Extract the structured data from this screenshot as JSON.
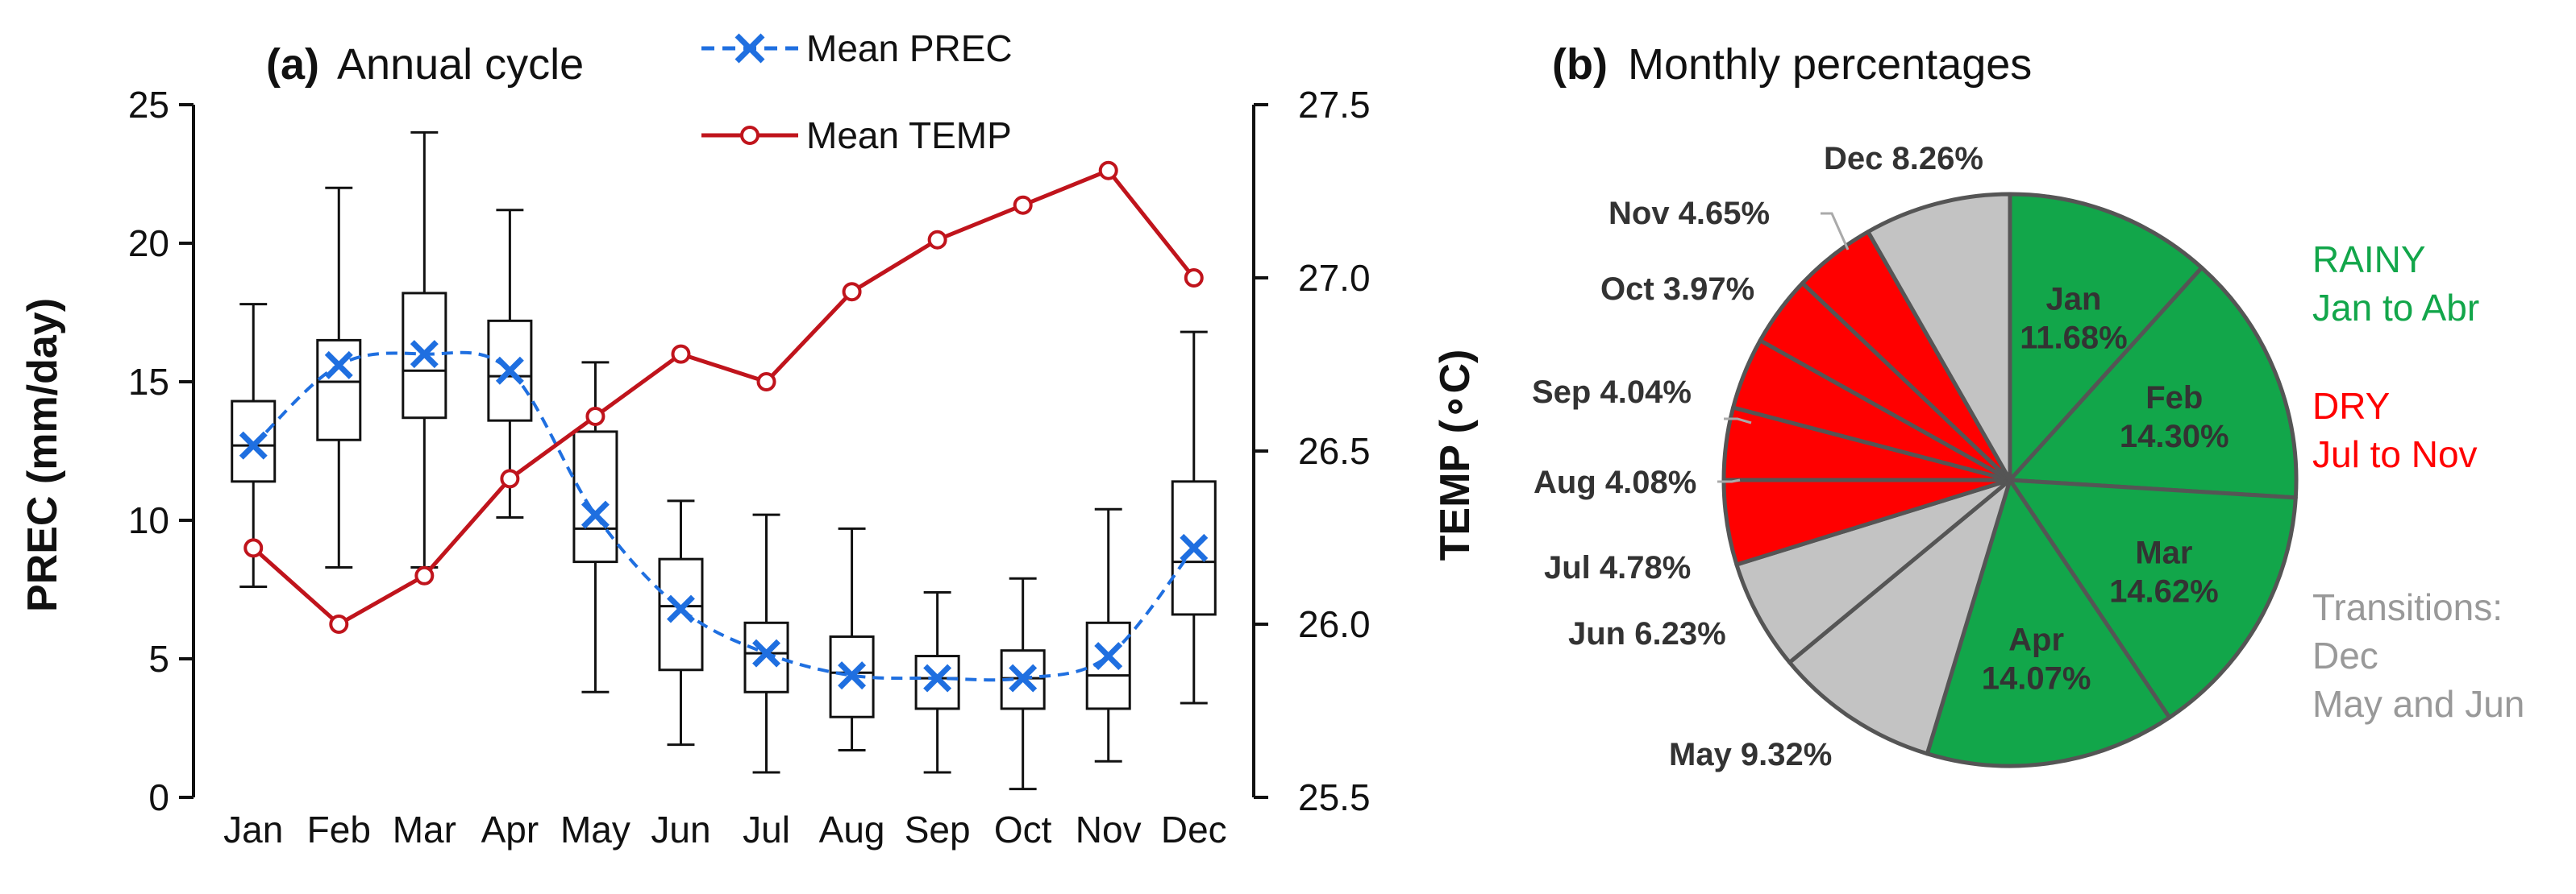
{
  "chart_data": [
    {
      "type": "box+line",
      "panel": "(a)",
      "title": "Annual cycle",
      "categories": [
        "Jan",
        "Feb",
        "Mar",
        "Apr",
        "May",
        "Jun",
        "Jul",
        "Aug",
        "Sep",
        "Oct",
        "Nov",
        "Dec"
      ],
      "ylabel": "PREC (mm/day)",
      "ylim": [
        0,
        25
      ],
      "yticks": [
        "0",
        "5",
        "10",
        "15",
        "20",
        "25"
      ],
      "y2label": "TEMP (∘C)",
      "y2lim": [
        25.5,
        27.5
      ],
      "y2ticks": [
        "25.5",
        "26.0",
        "26.5",
        "27.0",
        "27.5"
      ],
      "boxes": [
        {
          "min": 7.6,
          "q1": 11.4,
          "median": 12.7,
          "q3": 14.3,
          "max": 17.8
        },
        {
          "min": 8.3,
          "q1": 12.9,
          "median": 15.0,
          "q3": 16.5,
          "max": 22.0
        },
        {
          "min": 8.3,
          "q1": 13.7,
          "median": 15.4,
          "q3": 18.2,
          "max": 24.0
        },
        {
          "min": 10.1,
          "q1": 13.6,
          "median": 15.2,
          "q3": 17.2,
          "max": 21.2
        },
        {
          "min": 3.8,
          "q1": 8.5,
          "median": 9.7,
          "q3": 13.2,
          "max": 15.7
        },
        {
          "min": 1.9,
          "q1": 4.6,
          "median": 6.9,
          "q3": 8.6,
          "max": 10.7
        },
        {
          "min": 0.9,
          "q1": 3.8,
          "median": 5.2,
          "q3": 6.3,
          "max": 10.2
        },
        {
          "min": 1.7,
          "q1": 2.9,
          "median": 4.5,
          "q3": 5.8,
          "max": 9.7
        },
        {
          "min": 0.9,
          "q1": 3.2,
          "median": 4.3,
          "q3": 5.1,
          "max": 7.4
        },
        {
          "min": 0.3,
          "q1": 3.2,
          "median": 4.3,
          "q3": 5.3,
          "max": 7.9
        },
        {
          "min": 1.3,
          "q1": 3.2,
          "median": 4.4,
          "q3": 6.3,
          "max": 10.4
        },
        {
          "min": 3.4,
          "q1": 6.6,
          "median": 8.5,
          "q3": 11.4,
          "max": 16.8
        }
      ],
      "series": [
        {
          "name": "Mean PREC",
          "color": "#1f6fe0",
          "values": [
            12.7,
            15.6,
            16.0,
            15.4,
            10.2,
            6.8,
            5.2,
            4.4,
            4.3,
            4.3,
            5.1,
            9.0
          ]
        },
        {
          "name": "Mean TEMP",
          "color": "#c0141c",
          "values": [
            26.22,
            26.0,
            26.14,
            26.42,
            26.6,
            26.78,
            26.7,
            26.96,
            27.11,
            27.21,
            27.31,
            27.0
          ]
        }
      ]
    },
    {
      "type": "pie",
      "panel": "(b)",
      "title": "Monthly percentages",
      "slices": [
        {
          "label": "Jan",
          "pct": "11.68%",
          "value": 11.68,
          "color": "#12a64a",
          "outside": false
        },
        {
          "label": "Feb",
          "pct": "14.30%",
          "value": 14.3,
          "color": "#12a64a",
          "outside": false
        },
        {
          "label": "Mar",
          "pct": "14.62%",
          "value": 14.62,
          "color": "#12a64a",
          "outside": false
        },
        {
          "label": "Apr",
          "pct": "14.07%",
          "value": 14.07,
          "color": "#12a64a",
          "outside": false
        },
        {
          "label": "May",
          "pct": "9.32%",
          "value": 9.32,
          "color": "#c3c3c3",
          "outside": true
        },
        {
          "label": "Jun",
          "pct": "6.23%",
          "value": 6.23,
          "color": "#c3c3c3",
          "outside": true
        },
        {
          "label": "Jul",
          "pct": "4.78%",
          "value": 4.78,
          "color": "#ff0000",
          "outside": true
        },
        {
          "label": "Aug",
          "pct": "4.08%",
          "value": 4.08,
          "color": "#ff0000",
          "outside": true
        },
        {
          "label": "Sep",
          "pct": "4.04%",
          "value": 4.04,
          "color": "#ff0000",
          "outside": true
        },
        {
          "label": "Oct",
          "pct": "3.97%",
          "value": 3.97,
          "color": "#ff0000",
          "outside": true
        },
        {
          "label": "Nov",
          "pct": "4.65%",
          "value": 4.65,
          "color": "#ff0000",
          "outside": true
        },
        {
          "label": "Dec",
          "pct": "8.26%",
          "value": 8.26,
          "color": "#c3c3c3",
          "outside": true
        }
      ],
      "annotations": [
        {
          "line1": "RAINY",
          "line2": "Jan to Abr",
          "line3": "",
          "color": "#12a64a"
        },
        {
          "line1": "DRY",
          "line2": "Jul to Nov",
          "line3": "",
          "color": "#ff0000"
        },
        {
          "line1": "Transitions:",
          "line2": "Dec",
          "line3": "May and Jun",
          "color": "#999999"
        }
      ]
    }
  ]
}
